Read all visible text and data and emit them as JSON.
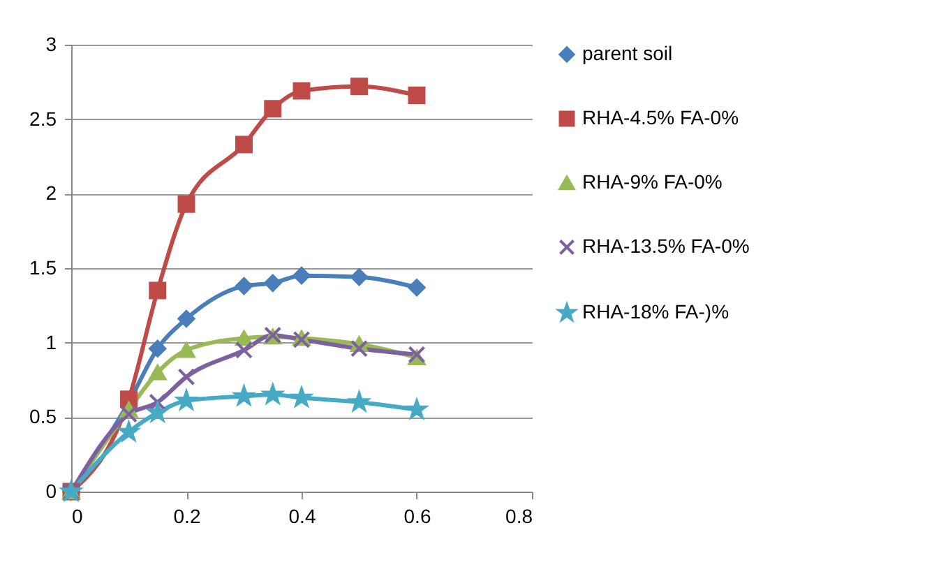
{
  "chart_data": {
    "type": "line",
    "x": [
      0,
      0.1,
      0.15,
      0.2,
      0.3,
      0.35,
      0.4,
      0.5,
      0.6
    ],
    "series": [
      {
        "name": "parent soil",
        "color": "#4a7ebb",
        "marker": "diamond",
        "values": [
          0,
          0.6,
          0.96,
          1.16,
          1.38,
          1.4,
          1.45,
          1.44,
          1.37
        ]
      },
      {
        "name": "RHA-4.5% FA-0%",
        "color": "#be4b48",
        "marker": "square",
        "values": [
          0,
          0.62,
          1.35,
          1.93,
          2.33,
          2.57,
          2.69,
          2.72,
          2.66
        ]
      },
      {
        "name": "RHA-9% FA-0%",
        "color": "#98b954",
        "marker": "triangle",
        "values": [
          0,
          0.55,
          0.8,
          0.95,
          1.03,
          1.04,
          1.03,
          0.99,
          0.9
        ]
      },
      {
        "name": "RHA-13.5% FA-0%",
        "color": "#7d60a0",
        "marker": "cross",
        "values": [
          0,
          0.52,
          0.6,
          0.77,
          0.95,
          1.05,
          1.02,
          0.96,
          0.92
        ]
      },
      {
        "name": "RHA-18% FA-)%",
        "color": "#46aac5",
        "marker": "star",
        "values": [
          0,
          0.4,
          0.53,
          0.61,
          0.64,
          0.65,
          0.63,
          0.6,
          0.55
        ]
      }
    ],
    "xlim": [
      0,
      0.8
    ],
    "xticks": [
      0,
      0.2,
      0.4,
      0.6,
      0.8
    ],
    "ylim": [
      0,
      3
    ],
    "yticks": [
      0,
      0.5,
      1,
      1.5,
      2,
      2.5,
      3
    ],
    "grid": "y",
    "legend": "right"
  }
}
